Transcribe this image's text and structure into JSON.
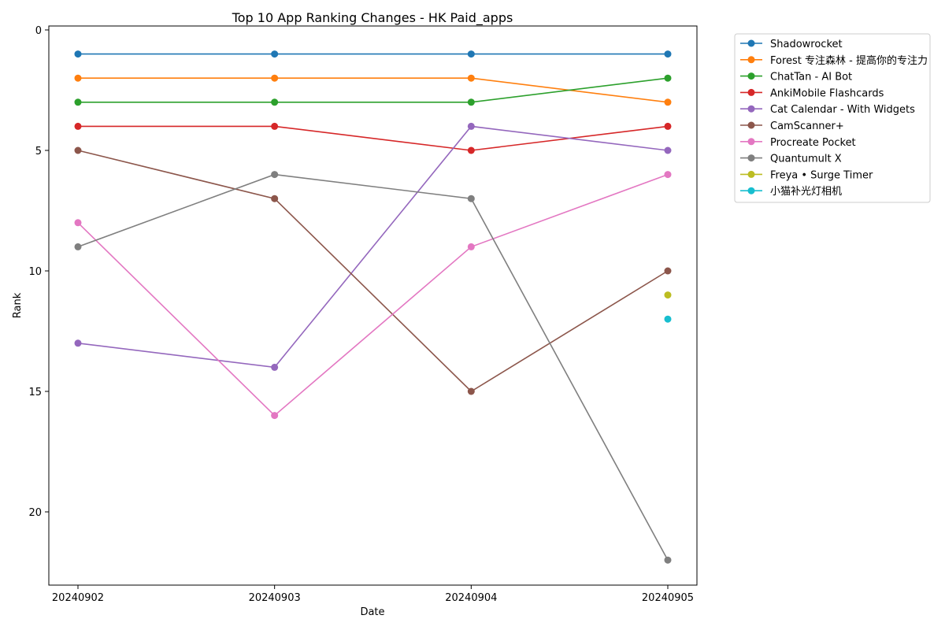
{
  "chart_data": {
    "type": "line",
    "title": "Top 10 App Ranking Changes - HK Paid_apps",
    "xlabel": "Date",
    "ylabel": "Rank",
    "categories": [
      "20240902",
      "20240903",
      "20240904",
      "20240905"
    ],
    "ylim": [
      23,
      0
    ],
    "y_inverted": true,
    "yticks": [
      0,
      5,
      10,
      15,
      20
    ],
    "grid": false,
    "legend_position": "outside-top-right",
    "marker": "circle",
    "series": [
      {
        "name": "Shadowrocket",
        "color": "#1f77b4",
        "values": [
          1,
          1,
          1,
          1
        ]
      },
      {
        "name": "Forest 专注森林 - 提高你的专注力",
        "color": "#ff7f0e",
        "values": [
          2,
          2,
          2,
          3
        ]
      },
      {
        "name": "ChatTan - AI Bot",
        "color": "#2ca02c",
        "values": [
          3,
          3,
          3,
          2
        ]
      },
      {
        "name": "AnkiMobile Flashcards",
        "color": "#d62728",
        "values": [
          4,
          4,
          5,
          4
        ]
      },
      {
        "name": "Cat Calendar - With Widgets",
        "color": "#9467bd",
        "values": [
          13,
          14,
          4,
          5
        ]
      },
      {
        "name": "CamScanner+",
        "color": "#8c564b",
        "values": [
          5,
          7,
          15,
          10
        ]
      },
      {
        "name": "Procreate Pocket",
        "color": "#e377c2",
        "values": [
          8,
          16,
          9,
          6
        ]
      },
      {
        "name": "Quantumult X",
        "color": "#7f7f7f",
        "values": [
          9,
          6,
          7,
          22
        ]
      },
      {
        "name": "Freya • Surge Timer",
        "color": "#bcbd22",
        "values": [
          null,
          null,
          null,
          11
        ]
      },
      {
        "name": "小猫补光灯相机",
        "color": "#17becf",
        "values": [
          null,
          null,
          null,
          12
        ]
      }
    ]
  }
}
